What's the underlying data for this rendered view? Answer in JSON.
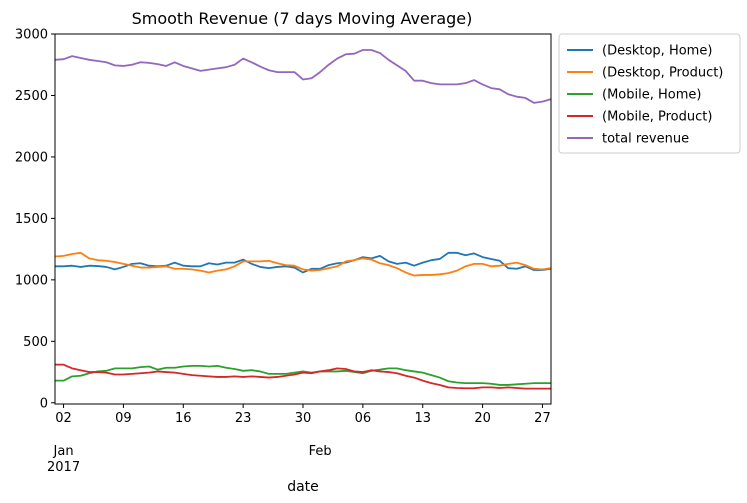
{
  "chart_data": {
    "type": "line",
    "title": "Smooth Revenue (7 days Moving Average)",
    "xlabel": "date",
    "ylabel": "",
    "x_start": "2017-01-01",
    "x_end": "2017-02-28",
    "xlim": [
      "2017-01-01",
      "2017-02-28"
    ],
    "ylim": [
      -10,
      3000
    ],
    "yticks": [
      0,
      500,
      1000,
      1500,
      2000,
      2500,
      3000
    ],
    "xticks": [
      {
        "date": "2017-01-02",
        "label": "02"
      },
      {
        "date": "2017-01-09",
        "label": "09"
      },
      {
        "date": "2017-01-16",
        "label": "16"
      },
      {
        "date": "2017-01-23",
        "label": "23"
      },
      {
        "date": "2017-01-30",
        "label": "30"
      },
      {
        "date": "2017-02-06",
        "label": "06"
      },
      {
        "date": "2017-02-13",
        "label": "13"
      },
      {
        "date": "2017-02-20",
        "label": "20"
      },
      {
        "date": "2017-02-27",
        "label": "27"
      }
    ],
    "month_labels": [
      {
        "date": "2017-01-02",
        "label": "Jan",
        "year": "2017"
      },
      {
        "date": "2017-02-01",
        "label": "Feb",
        "year": ""
      }
    ],
    "grid": false,
    "legend": "outside-upper-right",
    "series": [
      {
        "name": "(Desktop, Home)",
        "color": "#1f77b4",
        "values": [
          1110,
          1110,
          1115,
          1105,
          1115,
          1112,
          1105,
          1085,
          1105,
          1130,
          1135,
          1115,
          1110,
          1115,
          1140,
          1115,
          1110,
          1110,
          1135,
          1125,
          1140,
          1140,
          1165,
          1130,
          1105,
          1095,
          1105,
          1110,
          1100,
          1060,
          1090,
          1090,
          1120,
          1135,
          1140,
          1160,
          1185,
          1175,
          1195,
          1150,
          1130,
          1140,
          1115,
          1140,
          1160,
          1170,
          1220,
          1220,
          1200,
          1215,
          1185,
          1170,
          1155,
          1095,
          1090,
          1110,
          1080,
          1080,
          1090
        ]
      },
      {
        "name": "(Desktop, Product)",
        "color": "#ff7f0e",
        "values": [
          1190,
          1195,
          1210,
          1220,
          1175,
          1160,
          1155,
          1145,
          1130,
          1115,
          1100,
          1100,
          1105,
          1110,
          1090,
          1090,
          1085,
          1075,
          1060,
          1075,
          1085,
          1110,
          1150,
          1150,
          1150,
          1155,
          1135,
          1120,
          1115,
          1085,
          1075,
          1080,
          1095,
          1110,
          1150,
          1160,
          1175,
          1165,
          1135,
          1120,
          1095,
          1060,
          1035,
          1040,
          1040,
          1045,
          1055,
          1075,
          1110,
          1130,
          1130,
          1110,
          1115,
          1130,
          1140,
          1120,
          1090,
          1085,
          1095
        ]
      },
      {
        "name": "(Mobile, Home)",
        "color": "#2ca02c",
        "values": [
          180,
          180,
          215,
          220,
          240,
          255,
          260,
          280,
          280,
          280,
          290,
          295,
          270,
          285,
          285,
          295,
          300,
          300,
          295,
          300,
          285,
          275,
          260,
          265,
          255,
          235,
          235,
          235,
          245,
          255,
          245,
          255,
          255,
          255,
          260,
          250,
          240,
          260,
          270,
          280,
          280,
          265,
          255,
          245,
          225,
          205,
          175,
          165,
          160,
          160,
          160,
          155,
          145,
          145,
          150,
          155,
          160,
          160,
          160
        ]
      },
      {
        "name": "(Mobile, Product)",
        "color": "#d62728",
        "values": [
          310,
          310,
          280,
          265,
          250,
          250,
          245,
          230,
          230,
          235,
          240,
          245,
          255,
          250,
          245,
          235,
          225,
          220,
          215,
          210,
          210,
          215,
          210,
          215,
          210,
          205,
          210,
          220,
          230,
          245,
          240,
          255,
          265,
          280,
          275,
          255,
          250,
          265,
          255,
          250,
          240,
          220,
          205,
          180,
          160,
          145,
          125,
          120,
          118,
          118,
          125,
          125,
          120,
          125,
          120,
          115,
          115,
          115,
          115
        ]
      },
      {
        "name": "total revenue",
        "color": "#9467bd",
        "values": [
          2790,
          2795,
          2820,
          2805,
          2790,
          2780,
          2770,
          2745,
          2740,
          2750,
          2770,
          2765,
          2755,
          2740,
          2770,
          2740,
          2720,
          2700,
          2710,
          2720,
          2730,
          2750,
          2800,
          2770,
          2735,
          2705,
          2690,
          2690,
          2690,
          2630,
          2640,
          2690,
          2750,
          2800,
          2835,
          2840,
          2870,
          2870,
          2845,
          2790,
          2745,
          2700,
          2620,
          2620,
          2600,
          2590,
          2590,
          2590,
          2600,
          2625,
          2590,
          2560,
          2550,
          2510,
          2490,
          2480,
          2440,
          2450,
          2470
        ]
      }
    ]
  }
}
